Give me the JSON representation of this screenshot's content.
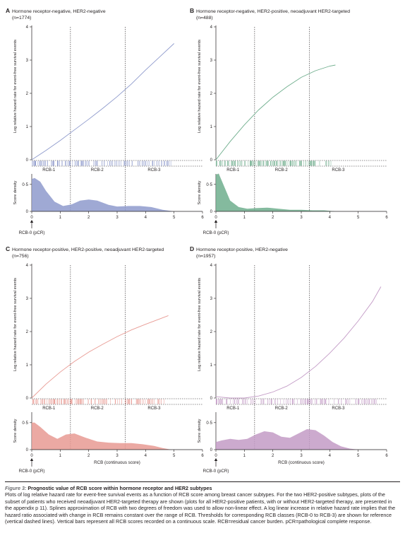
{
  "figure": {
    "caption_label": "Figure 3:",
    "caption_title": "Prognostic value of RCB score within hormone receptor and HER2 subtypes",
    "caption_body": "Plots of log relative hazard rate for event-free survival events as a function of RCB score among breast cancer subtypes. For the two HER2-positive subtypes, plots of the subset of patients who received neoadjuvant HER2-targeted therapy are shown (plots for all HER2-positive patients, with or without HER2-targeted therapy, are presented in the appendix p 11). Splines approximation of RCB with two degrees of freedom was used to allow non-linear effect. A log linear increase in relative hazard rate implies that the hazard ratio associated with change in RCB remains constant over the range of RCB. Thresholds for corresponding RCB classes (RCB-0 to RCB-3) are shown for reference (vertical dashed lines). Vertical bars represent all RCB scores recorded on a continuous scale. RCB=residual cancer burden. pCR=pathological complete response."
  },
  "common": {
    "ylabel_top": "Log relative hazard rate for event-free survival events",
    "ylabel_bottom": "Score density",
    "xlabel": "RCB (continuous score)",
    "pcr_label": "RCB-0 (pCR)",
    "class_labels": [
      "RCB-1",
      "RCB-2",
      "RCB-3"
    ],
    "thresholds": [
      1.36,
      3.28
    ],
    "top_y_ticks": [
      "4",
      "3",
      "2",
      "1",
      "0"
    ],
    "bottom_y_ticks": [
      "0·5",
      "0"
    ],
    "x_ticks": [
      "0",
      "1",
      "2",
      "3",
      "4",
      "5",
      "6"
    ]
  },
  "panels": [
    {
      "letter": "A",
      "title_line1": "Hormone receptor-negative, HER2-negative",
      "title_line2": "(n=1774)",
      "color": "#8e9acc",
      "show_xlabel": false
    },
    {
      "letter": "B",
      "title_line1": "Hormone receptor-negative, HER2-positive, neoadjuvant HER2-targeted",
      "title_line2": "(n=488)",
      "color": "#6fae8d",
      "show_xlabel": false
    },
    {
      "letter": "C",
      "title_line1": "Hormone receptor-positive, HER2-positive, neoadjuvant HER2-targeted",
      "title_line2": "(n=756)",
      "color": "#e89a93",
      "show_xlabel": true
    },
    {
      "letter": "D",
      "title_line1": "Hormone receptor-positive, HER2-negative",
      "title_line2": "(n=1957)",
      "color": "#c39bc6",
      "show_xlabel": true
    }
  ],
  "chart_data": [
    {
      "type": "line",
      "panel": "A",
      "title": "Hormone receptor-negative, HER2-negative (n=1774)",
      "xlabel": "",
      "ylabel": "Log relative hazard rate for event-free survival events",
      "xlim": [
        0,
        6
      ],
      "ylim": [
        0,
        4
      ],
      "hazard": {
        "x": [
          0,
          0.5,
          1,
          1.5,
          2,
          2.5,
          3,
          3.5,
          4,
          4.5,
          5
        ],
        "y": [
          0,
          0.28,
          0.58,
          0.9,
          1.22,
          1.55,
          1.9,
          2.28,
          2.7,
          3.1,
          3.5
        ]
      },
      "density": {
        "x": [
          0,
          0.1,
          0.3,
          0.5,
          0.8,
          1.1,
          1.4,
          1.7,
          2.0,
          2.3,
          2.7,
          3.0,
          3.4,
          3.8,
          4.2,
          4.6,
          5.0
        ],
        "y": [
          0.6,
          0.62,
          0.55,
          0.38,
          0.18,
          0.1,
          0.13,
          0.2,
          0.22,
          0.2,
          0.12,
          0.09,
          0.1,
          0.1,
          0.08,
          0.03,
          0.0
        ]
      },
      "rcb_range": [
        0,
        4.9
      ]
    },
    {
      "type": "line",
      "panel": "B",
      "title": "Hormone receptor-negative, HER2-positive, neoadjuvant HER2-targeted (n=488)",
      "xlabel": "",
      "ylabel": "Log relative hazard rate for event-free survival events",
      "xlim": [
        0,
        6
      ],
      "ylim": [
        0,
        4
      ],
      "hazard": {
        "x": [
          0,
          0.5,
          1,
          1.5,
          2,
          2.5,
          3,
          3.5,
          4,
          4.2
        ],
        "y": [
          0,
          0.55,
          1.05,
          1.5,
          1.88,
          2.2,
          2.48,
          2.68,
          2.82,
          2.85
        ]
      },
      "density": {
        "x": [
          0,
          0.1,
          0.3,
          0.5,
          0.8,
          1.1,
          1.4,
          1.8,
          2.2,
          2.6,
          3.0,
          3.4,
          3.8,
          4.2
        ],
        "y": [
          0.68,
          0.7,
          0.45,
          0.2,
          0.08,
          0.05,
          0.06,
          0.07,
          0.05,
          0.03,
          0.03,
          0.02,
          0.02,
          0.0
        ]
      },
      "rcb_range": [
        0,
        4.2
      ]
    },
    {
      "type": "line",
      "panel": "C",
      "title": "Hormone receptor-positive, HER2-positive, neoadjuvant HER2-targeted (n=756)",
      "xlabel": "RCB (continuous score)",
      "ylabel": "Log relative hazard rate for event-free survival events",
      "xlim": [
        0,
        6
      ],
      "ylim": [
        0,
        4
      ],
      "hazard": {
        "x": [
          0,
          0.5,
          1,
          1.5,
          2,
          2.5,
          3,
          3.5,
          4,
          4.5,
          4.8
        ],
        "y": [
          0,
          0.42,
          0.78,
          1.1,
          1.38,
          1.62,
          1.85,
          2.05,
          2.22,
          2.38,
          2.48
        ]
      },
      "density": {
        "x": [
          0,
          0.1,
          0.3,
          0.6,
          0.9,
          1.2,
          1.5,
          1.9,
          2.3,
          2.7,
          3.1,
          3.5,
          3.9,
          4.3,
          4.6,
          4.9
        ],
        "y": [
          0.5,
          0.5,
          0.42,
          0.28,
          0.2,
          0.28,
          0.3,
          0.22,
          0.15,
          0.13,
          0.12,
          0.12,
          0.1,
          0.07,
          0.03,
          0.0
        ]
      },
      "rcb_range": [
        0,
        4.7
      ]
    },
    {
      "type": "line",
      "panel": "D",
      "title": "Hormone receptor-positive, HER2-negative (n=1957)",
      "xlabel": "RCB (continuous score)",
      "ylabel": "Log relative hazard rate for event-free survival events",
      "xlim": [
        0,
        6
      ],
      "ylim": [
        0,
        4
      ],
      "hazard": {
        "x": [
          0,
          0.5,
          1,
          1.5,
          2,
          2.5,
          3,
          3.5,
          4,
          4.5,
          5,
          5.5,
          5.8
        ],
        "y": [
          0.04,
          0.0,
          0.0,
          0.06,
          0.18,
          0.36,
          0.62,
          0.95,
          1.35,
          1.8,
          2.32,
          2.9,
          3.35
        ]
      },
      "density": {
        "x": [
          0,
          0.2,
          0.5,
          0.8,
          1.1,
          1.4,
          1.7,
          2.0,
          2.3,
          2.6,
          2.9,
          3.2,
          3.5,
          3.8,
          4.1,
          4.4,
          4.7,
          5.0
        ],
        "y": [
          0.14,
          0.17,
          0.2,
          0.18,
          0.2,
          0.28,
          0.34,
          0.32,
          0.24,
          0.22,
          0.3,
          0.38,
          0.36,
          0.26,
          0.14,
          0.06,
          0.02,
          0.0
        ]
      },
      "rcb_range": [
        0,
        5.8
      ]
    }
  ]
}
